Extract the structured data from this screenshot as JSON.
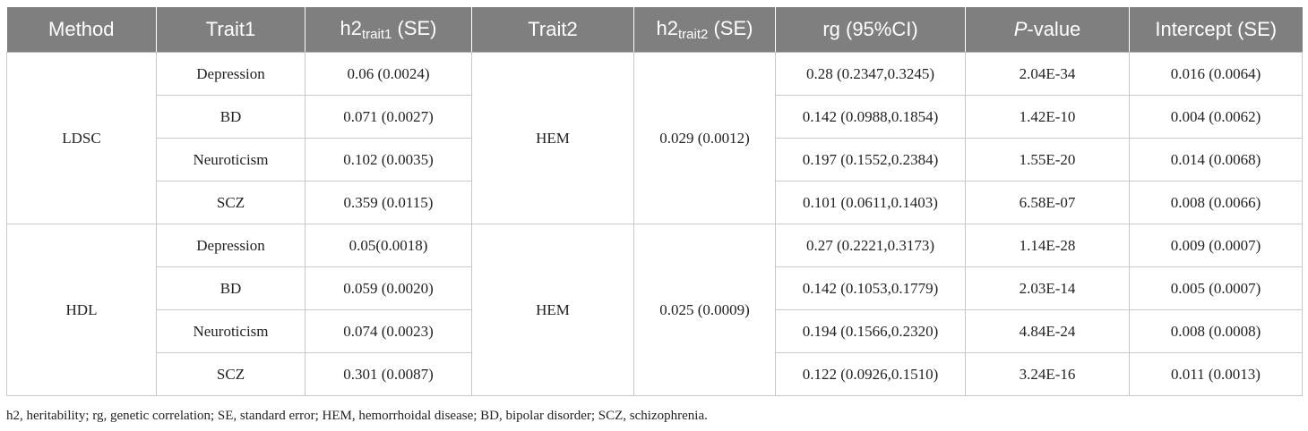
{
  "table": {
    "headers": {
      "method": "Method",
      "trait1": "Trait1",
      "h2_trait1_main": "h2",
      "h2_trait1_sub": "trait1",
      "h2_trait1_suffix": " (SE)",
      "trait2": "Trait2",
      "h2_trait2_main": "h2",
      "h2_trait2_sub": "trait2",
      "h2_trait2_suffix": " (SE)",
      "rg": "rg (95%CI)",
      "p_italic": "P",
      "p_suffix": "-value",
      "intercept": "Intercept (SE)"
    },
    "groups": [
      {
        "method": "LDSC",
        "trait2": "HEM",
        "h2_trait2": "0.029 (0.0012)",
        "rows": [
          {
            "trait1": "Depression",
            "h2_trait1": "0.06 (0.0024)",
            "rg": "0.28 (0.2347,0.3245)",
            "p": "2.04E-34",
            "intercept": "0.016 (0.0064)"
          },
          {
            "trait1": "BD",
            "h2_trait1": "0.071 (0.0027)",
            "rg": "0.142 (0.0988,0.1854)",
            "p": "1.42E-10",
            "intercept": "0.004 (0.0062)"
          },
          {
            "trait1": "Neuroticism",
            "h2_trait1": "0.102 (0.0035)",
            "rg": "0.197 (0.1552,0.2384)",
            "p": "1.55E-20",
            "intercept": "0.014 (0.0068)"
          },
          {
            "trait1": "SCZ",
            "h2_trait1": "0.359 (0.0115)",
            "rg": "0.101 (0.0611,0.1403)",
            "p": "6.58E-07",
            "intercept": "0.008 (0.0066)"
          }
        ]
      },
      {
        "method": "HDL",
        "trait2": "HEM",
        "h2_trait2": "0.025 (0.0009)",
        "rows": [
          {
            "trait1": "Depression",
            "h2_trait1": "0.05(0.0018)",
            "rg": "0.27 (0.2221,0.3173)",
            "p": "1.14E-28",
            "intercept": "0.009 (0.0007)"
          },
          {
            "trait1": "BD",
            "h2_trait1": "0.059 (0.0020)",
            "rg": "0.142 (0.1053,0.1779)",
            "p": "2.03E-14",
            "intercept": "0.005 (0.0007)"
          },
          {
            "trait1": "Neuroticism",
            "h2_trait1": "0.074 (0.0023)",
            "rg": "0.194 (0.1566,0.2320)",
            "p": "4.84E-24",
            "intercept": "0.008 (0.0008)"
          },
          {
            "trait1": "SCZ",
            "h2_trait1": "0.301 (0.0087)",
            "rg": "0.122 (0.0926,0.1510)",
            "p": "3.24E-16",
            "intercept": "0.011 (0.0013)"
          }
        ]
      }
    ]
  },
  "footnote": "h2, heritability; rg, genetic correlation; SE, standard error; HEM, hemorrhoidal disease; BD, bipolar disorder; SCZ, schizophrenia.",
  "colors": {
    "header_bg": "#7f7f7f",
    "header_text": "#ffffff",
    "grid_line": "#c8c8c8"
  }
}
